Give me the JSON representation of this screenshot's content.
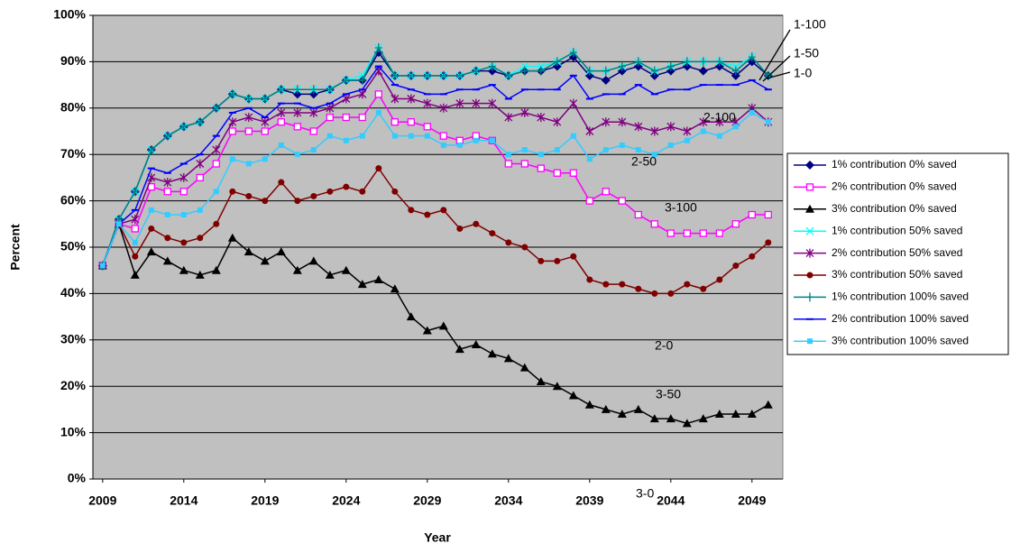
{
  "chart_data": {
    "type": "line",
    "x": [
      2009,
      2010,
      2011,
      2012,
      2013,
      2014,
      2015,
      2016,
      2017,
      2018,
      2019,
      2020,
      2021,
      2022,
      2023,
      2024,
      2025,
      2026,
      2027,
      2028,
      2029,
      2030,
      2031,
      2032,
      2033,
      2034,
      2035,
      2036,
      2037,
      2038,
      2039,
      2040,
      2041,
      2042,
      2043,
      2044,
      2045,
      2046,
      2047,
      2048,
      2049,
      2050
    ],
    "xlim": [
      2008.4,
      2050.9
    ],
    "xticks": [
      2009,
      2014,
      2019,
      2024,
      2029,
      2034,
      2039,
      2044,
      2049
    ],
    "ylim": [
      0,
      100
    ],
    "yticks": [
      {
        "value": 0,
        "label": "0%"
      },
      {
        "value": 10,
        "label": "10%"
      },
      {
        "value": 20,
        "label": "20%"
      },
      {
        "value": 30,
        "label": "30%"
      },
      {
        "value": 40,
        "label": "40%"
      },
      {
        "value": 50,
        "label": "50%"
      },
      {
        "value": 60,
        "label": "60%"
      },
      {
        "value": 70,
        "label": "70%"
      },
      {
        "value": 80,
        "label": "80%"
      },
      {
        "value": 90,
        "label": "90%"
      },
      {
        "value": 100,
        "label": "100%"
      }
    ],
    "grid": true,
    "xlabel": "Year",
    "ylabel": "Percent",
    "legend": "right",
    "series": [
      {
        "name": "1% contribution 0% saved",
        "color": "#000080",
        "marker": "diamond",
        "values": [
          46,
          56,
          62,
          71,
          74,
          76,
          77,
          80,
          83,
          82,
          82,
          84,
          83,
          83,
          84,
          86,
          86,
          92,
          87,
          87,
          87,
          87,
          87,
          88,
          88,
          87,
          88,
          88,
          89,
          91,
          87,
          86,
          88,
          89,
          87,
          88,
          89,
          88,
          89,
          87,
          90,
          87
        ]
      },
      {
        "name": "2% contribution 0% saved",
        "color": "#FF00FF",
        "marker": "square-open",
        "values": [
          46,
          55,
          54,
          63,
          62,
          62,
          65,
          68,
          75,
          75,
          75,
          77,
          76,
          75,
          78,
          78,
          78,
          83,
          77,
          77,
          76,
          74,
          73,
          74,
          73,
          68,
          68,
          67,
          66,
          66,
          60,
          62,
          60,
          57,
          55,
          53,
          53,
          53,
          53,
          55,
          57,
          57
        ]
      },
      {
        "name": "3% contribution 0% saved",
        "color": "#000000",
        "marker": "triangle",
        "values": [
          46,
          55,
          44,
          49,
          47,
          45,
          44,
          45,
          52,
          49,
          47,
          49,
          45,
          47,
          44,
          45,
          42,
          43,
          41,
          35,
          32,
          33,
          28,
          29,
          27,
          26,
          24,
          21,
          20,
          18,
          16,
          15,
          14,
          15,
          13,
          13,
          12,
          13,
          14,
          14,
          14,
          16
        ]
      },
      {
        "name": "1% contribution 50% saved",
        "color": "#00FFFF",
        "marker": "x",
        "values": [
          46,
          56,
          62,
          71,
          74,
          76,
          77,
          80,
          83,
          82,
          82,
          84,
          84,
          84,
          84,
          86,
          87,
          93,
          87,
          87,
          87,
          87,
          87,
          88,
          89,
          87,
          89,
          89,
          90,
          92,
          88,
          88,
          89,
          90,
          88,
          89,
          90,
          90,
          90,
          89,
          91,
          87
        ]
      },
      {
        "name": "2% contribution 50% saved",
        "color": "#800080",
        "marker": "star",
        "values": [
          46,
          55,
          56,
          65,
          64,
          65,
          68,
          71,
          77,
          78,
          77,
          79,
          79,
          79,
          80,
          82,
          83,
          88,
          82,
          82,
          81,
          80,
          81,
          81,
          81,
          78,
          79,
          78,
          77,
          81,
          75,
          77,
          77,
          76,
          75,
          76,
          75,
          77,
          77,
          77,
          80,
          77
        ]
      },
      {
        "name": "3% contribution 50% saved",
        "color": "#800000",
        "marker": "circle",
        "values": [
          46,
          55,
          48,
          54,
          52,
          51,
          52,
          55,
          62,
          61,
          60,
          64,
          60,
          61,
          62,
          63,
          62,
          67,
          62,
          58,
          57,
          58,
          54,
          55,
          53,
          51,
          50,
          47,
          47,
          48,
          43,
          42,
          42,
          41,
          40,
          40,
          42,
          41,
          43,
          46,
          48,
          51
        ]
      },
      {
        "name": "1% contribution 100% saved",
        "color": "#008080",
        "marker": "plus",
        "values": [
          46,
          56,
          62,
          71,
          74,
          76,
          77,
          80,
          83,
          82,
          82,
          84,
          84,
          84,
          84,
          86,
          86,
          93,
          87,
          87,
          87,
          87,
          87,
          88,
          89,
          87,
          88,
          88,
          90,
          92,
          88,
          88,
          89,
          90,
          88,
          89,
          90,
          90,
          90,
          88,
          91,
          87
        ]
      },
      {
        "name": "2% contribution 100% saved",
        "color": "#0000FF",
        "marker": "dash",
        "values": [
          46,
          55,
          58,
          67,
          66,
          68,
          70,
          74,
          79,
          80,
          78,
          81,
          81,
          80,
          81,
          83,
          84,
          89,
          85,
          84,
          83,
          83,
          84,
          84,
          85,
          82,
          84,
          84,
          84,
          87,
          82,
          83,
          83,
          85,
          83,
          84,
          84,
          85,
          85,
          85,
          86,
          84
        ]
      },
      {
        "name": "3% contribution 100% saved",
        "color": "#33CCFF",
        "marker": "square",
        "values": [
          46,
          55,
          51,
          58,
          57,
          57,
          58,
          62,
          69,
          68,
          69,
          72,
          70,
          71,
          74,
          73,
          74,
          79,
          74,
          74,
          74,
          72,
          72,
          73,
          73,
          70,
          71,
          70,
          71,
          74,
          69,
          71,
          72,
          71,
          70,
          72,
          73,
          75,
          74,
          76,
          79,
          77
        ]
      }
    ],
    "annotations": [
      "1-100",
      "1-50",
      "1-0",
      "2-100",
      "2-50",
      "3-100",
      "2-0",
      "3-50",
      "3-0"
    ]
  }
}
